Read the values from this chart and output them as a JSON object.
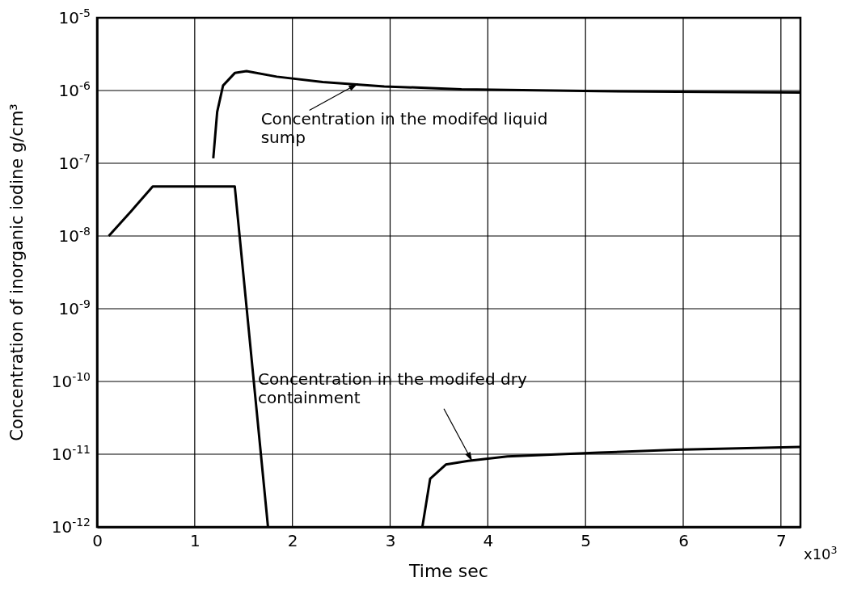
{
  "chart_data": {
    "type": "line",
    "xlabel": "Time sec",
    "ylabel": "Concentration of inorganic iodine g/cm³",
    "log": "y",
    "grid": true,
    "marker": "none",
    "line_style": "solid",
    "xlim": [
      0,
      7.2
    ],
    "xticks": [
      0,
      1,
      2,
      3,
      4,
      5,
      6,
      7
    ],
    "ylim": [
      1e-12,
      1e-05
    ],
    "yticks": [
      {
        "value": 1e-12,
        "label": "10$^{-12}$"
      },
      {
        "value": 1e-11,
        "label": "10$^{-11}$"
      },
      {
        "value": 1e-10,
        "label": "10$^{-10}$"
      },
      {
        "value": 1e-09,
        "label": "10$^{-9}$"
      },
      {
        "value": 1e-08,
        "label": "10$^{-8}$"
      },
      {
        "value": 1e-07,
        "label": "10$^{-7}$"
      },
      {
        "value": 1e-06,
        "label": "10$^{-6}$"
      },
      {
        "value": 1e-05,
        "label": "10$^{-5}$"
      }
    ],
    "series": [
      {
        "color": "#000000",
        "x": [
          1.19,
          1.23,
          1.29,
          1.41,
          1.53,
          1.84,
          2.31,
          2.94,
          3.73,
          5.14,
          7.2
        ],
        "values": [
          1.17e-07,
          5.1e-07,
          1.17e-06,
          1.74e-06,
          1.85e-06,
          1.55e-06,
          1.31e-06,
          1.14e-06,
          1.04e-06,
          9.8e-07,
          9.4e-07
        ]
      },
      {
        "color": "#000000",
        "x": [
          0.12,
          0.35,
          0.57,
          1.41,
          1.75
        ],
        "values": [
          1e-08,
          2.2e-08,
          4.8e-08,
          4.8e-08,
          1e-12
        ]
      },
      {
        "color": "#000000",
        "x": [
          3.33,
          3.41,
          3.57,
          3.8,
          4.2,
          5.14,
          5.92,
          7.2
        ],
        "values": [
          1e-12,
          4.6e-12,
          7.2e-12,
          8.1e-12,
          9.3e-12,
          1.05e-11,
          1.15e-11,
          1.26e-11
        ]
      }
    ],
    "annotations": [
      {
        "text": "Concentration in the modifed liquid sump",
        "x": 2.67,
        "y": 1.24e-06
      },
      {
        "text": "Concentration in the modifed dry containment",
        "x": 3.84,
        "y": 8e-12
      },
      "x10$^{3}$"
    ]
  }
}
